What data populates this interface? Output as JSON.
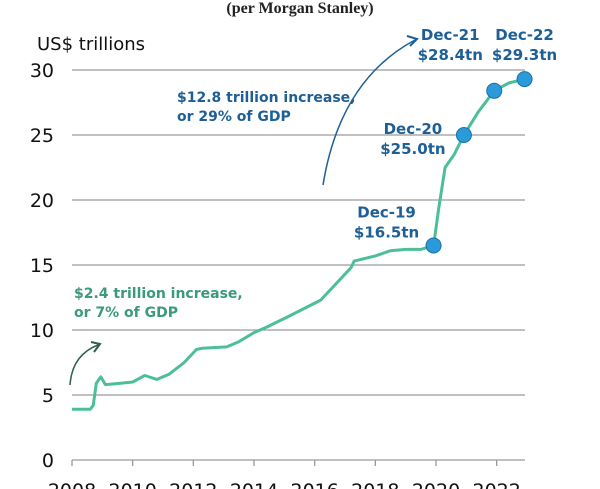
{
  "chart_data": {
    "type": "line",
    "title": "(per Morgan Stanley)",
    "ylabel": "US$ trillions",
    "xlabel": "",
    "ylim": [
      0,
      30
    ],
    "xlim": [
      2008,
      2023
    ],
    "yticks": [
      "0",
      "5",
      "10",
      "15",
      "20",
      "25",
      "30"
    ],
    "xticks": [
      "2008",
      "2010",
      "2012",
      "2014",
      "2016",
      "2018",
      "2020",
      "2022"
    ],
    "grid": true,
    "line_color": "#4dbf98",
    "marker_color": "#2a9ad8",
    "series": [
      {
        "x": [
          2008.0,
          2008.6,
          2008.7,
          2008.8,
          2008.95,
          2009.1,
          2009.6,
          2010.0,
          2010.4,
          2010.8,
          2011.2,
          2011.7,
          2012.1,
          2012.3,
          2013.1,
          2013.5,
          2014.0,
          2014.4,
          2015.1,
          2016.2,
          2017.2,
          2017.3,
          2018.0,
          2018.5,
          2019.0,
          2019.5,
          2019.92,
          2020.1,
          2020.3,
          2020.6,
          2020.92,
          2021.4,
          2021.92,
          2022.4,
          2022.92
        ],
        "y": [
          3.9,
          3.9,
          4.2,
          5.9,
          6.4,
          5.8,
          5.9,
          6.0,
          6.5,
          6.2,
          6.6,
          7.5,
          8.5,
          8.6,
          8.7,
          9.1,
          9.8,
          10.2,
          11.0,
          12.3,
          14.8,
          15.3,
          15.7,
          16.1,
          16.2,
          16.2,
          16.5,
          19.5,
          22.5,
          23.5,
          25.0,
          26.8,
          28.4,
          29.0,
          29.3
        ]
      }
    ],
    "highlighted_points": [
      {
        "x": 2019.92,
        "y": 16.5,
        "label": "Dec-19",
        "value": "$16.5tn"
      },
      {
        "x": 2020.92,
        "y": 25.0,
        "label": "Dec-20",
        "value": "$25.0tn"
      },
      {
        "x": 2021.92,
        "y": 28.4,
        "label": "Dec-21",
        "value": "$28.4tn"
      },
      {
        "x": 2022.92,
        "y": 29.3,
        "label": "Dec-22",
        "value": "$29.3tn"
      }
    ],
    "annotations": [
      {
        "lines": [
          "$2.4 trillion increase,",
          "or 7% of GDP"
        ],
        "color": "#3a9a7a"
      },
      {
        "lines": [
          "$12.8 trillion increase,",
          "or 29% of GDP"
        ],
        "color": "#1d5f96"
      }
    ]
  }
}
